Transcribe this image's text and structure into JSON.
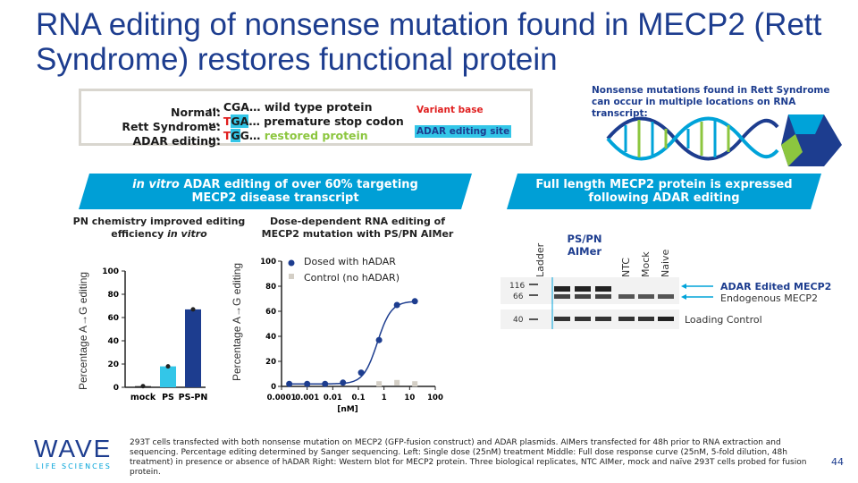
{
  "title": "RNA editing of nonsense mutation found in MECP2 (Rett Syndrome) restores functional protein",
  "sequences": {
    "labels": [
      "Normal:",
      "Rett Syndrome:",
      "ADAR editing:"
    ],
    "normal": {
      "prefix": "… C",
      "mid": "GA",
      "suffix": "… wild type protein"
    },
    "rett": {
      "prefix": "… ",
      "red": "T",
      "hl": "GA",
      "suffix": "… premature stop codon"
    },
    "adar": {
      "prefix": "… ",
      "red": "T",
      "mid": "G",
      "hl": "G",
      "dots": "… ",
      "restored": "restored protein"
    },
    "legend_variant": "Variant base",
    "legend_adar": "ADAR editing site"
  },
  "nonsense_note": "Nonsense mutations found in Rett Syndrome can occur in multiple locations on RNA transcript:",
  "banners": {
    "left_italic": "in vitro",
    "left_line1": " ADAR editing of over 60% targeting",
    "left_line2": "MECP2 disease transcript",
    "right_line1": "Full length MECP2 protein is expressed",
    "right_line2": "following ADAR editing"
  },
  "panel_left": {
    "title_line1": "PN chemistry improved editing",
    "title_line2_a": "efficiency ",
    "title_line2_b": "in vitro",
    "ylabel": "Percentage A→G editing"
  },
  "panel_mid": {
    "title_line1": "Dose-dependent RNA editing of",
    "title_line2": "MECP2 mutation with PS/PN AIMer",
    "ylabel": "Percentage A→G editing",
    "xlabel": "[nM]",
    "legend_dosed": "Dosed with hADAR",
    "legend_control": "Control (no hADAR)"
  },
  "blot": {
    "header_line1": "PS/PN",
    "header_line2": "AIMer",
    "lane_labels": [
      "Ladder",
      "NTC",
      "Mock",
      "Naive"
    ],
    "markers": [
      "116",
      "66",
      "40"
    ],
    "label_edited": "ADAR Edited MECP2",
    "label_endogenous": "Endogenous MECP2",
    "label_loading": "Loading Control"
  },
  "footer": "293T cells transfected with both nonsense mutation on MECP2 (GFP-fusion construct) and ADAR plasmids. AIMers transfected for 48h prior to RNA extraction and sequencing. Percentage editing determined by Sanger sequencing. Left: Single dose (25nM) treatment Middle: Full dose response curve (25nM, 5-fold dilution, 48h treatment) in presence or absence of hADAR Right: Western blot for MECP2 protein. Three biological replicates, NTC AIMer, mock and naïve 293T cells probed for fusion protein.",
  "logo": {
    "main": "WAVE",
    "sub": "LIFE SCIENCES"
  },
  "page_number": "44",
  "colors": {
    "brand_blue": "#1d3d8f",
    "banner": "#009fd6",
    "red": "#e02020",
    "highlight": "#33c6e8",
    "green": "#8cc63f"
  },
  "chart_data": [
    {
      "type": "bar",
      "title": "PN chemistry improved editing efficiency in vitro",
      "categories": [
        "mock",
        "PS",
        "PS-PN"
      ],
      "values": [
        1,
        18,
        67
      ],
      "ylabel": "Percentage A→G editing",
      "ylim": [
        0,
        100
      ],
      "yticks": [
        0,
        20,
        40,
        60,
        80,
        100
      ],
      "colors": [
        "#222222",
        "#33c6e8",
        "#1d3d8f"
      ]
    },
    {
      "type": "scatter",
      "title": "Dose-dependent RNA editing of MECP2 mutation with PS/PN AIMer",
      "xlabel": "[nM]",
      "ylabel": "Percentage A→G editing",
      "xscale": "log",
      "xticks": [
        0.0001,
        0.001,
        0.01,
        0.1,
        1,
        10,
        100
      ],
      "xtick_labels": [
        "0.0001",
        "0.001",
        "0.01",
        "0.1",
        "1",
        "10",
        "100"
      ],
      "yticks": [
        0,
        20,
        40,
        60,
        80,
        100
      ],
      "ylim": [
        0,
        100
      ],
      "series": [
        {
          "name": "Dosed with hADAR",
          "x": [
            0.0002,
            0.001,
            0.005,
            0.025,
            0.128,
            0.64,
            3.2,
            16
          ],
          "values": [
            2,
            2,
            2,
            3,
            11,
            37,
            65,
            68
          ],
          "color": "#1d3d8f",
          "fit": true
        },
        {
          "name": "Control (no hADAR)",
          "x": [
            0.64,
            3.2,
            16
          ],
          "values": [
            2,
            3,
            2
          ],
          "color": "#d4cfc6",
          "fit": false
        }
      ]
    }
  ]
}
